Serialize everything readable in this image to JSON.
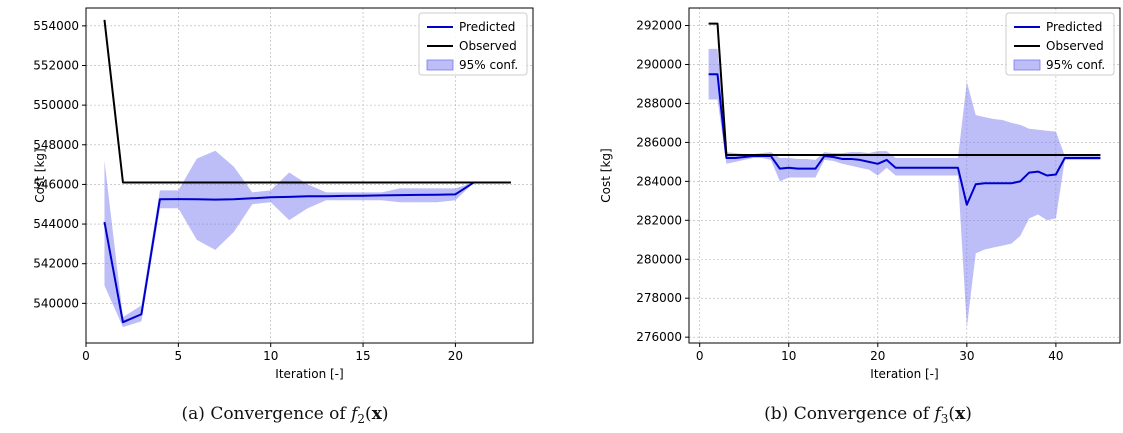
{
  "chart_data": [
    {
      "type": "line",
      "title": "",
      "xlabel": "Iteration [-]",
      "ylabel": "Cost [kg]",
      "xlim": [
        0,
        24.2
      ],
      "ylim": [
        538000,
        554900
      ],
      "xticks": [
        0,
        5,
        10,
        15,
        20
      ],
      "yticks": [
        540000,
        542000,
        544000,
        546000,
        548000,
        550000,
        552000,
        554000
      ],
      "grid": true,
      "legend_position": "top-right",
      "caption": "(a) Convergence of f2(x)",
      "caption_prefix": "(a) Convergence of ",
      "caption_fn": "f",
      "caption_sub": "2",
      "caption_arg": "x",
      "series": [
        {
          "name": "Predicted",
          "color": "#0000cc",
          "x": [
            1,
            2,
            3,
            4,
            5,
            6,
            7,
            8,
            9,
            10,
            11,
            12,
            13,
            14,
            15,
            16,
            17,
            18,
            19,
            20,
            21,
            22,
            23
          ],
          "values": [
            544100,
            539050,
            539450,
            545250,
            545260,
            545250,
            545230,
            545250,
            545300,
            545350,
            545370,
            545400,
            545400,
            545420,
            545430,
            545450,
            545460,
            545470,
            545480,
            545500,
            546100,
            546100,
            546100
          ]
        },
        {
          "name": "Observed",
          "color": "#000000",
          "x": [
            1,
            2,
            3,
            4,
            5,
            6,
            7,
            8,
            9,
            10,
            11,
            12,
            13,
            14,
            15,
            16,
            17,
            18,
            19,
            20,
            21,
            22,
            23
          ],
          "values": [
            554300,
            546100,
            546100,
            546100,
            546100,
            546100,
            546100,
            546100,
            546100,
            546100,
            546100,
            546100,
            546100,
            546100,
            546100,
            546100,
            546100,
            546100,
            546100,
            546100,
            546100,
            546100,
            546100
          ]
        },
        {
          "name": "95% conf.",
          "type": "band",
          "color": "#7b7bf0",
          "x": [
            1,
            2,
            3,
            4,
            5,
            6,
            7,
            8,
            9,
            10,
            11,
            12,
            13,
            14,
            15,
            16,
            17,
            18,
            19,
            20,
            21,
            22,
            23
          ],
          "upper": [
            547200,
            539300,
            539900,
            545700,
            545700,
            547300,
            547700,
            546900,
            545600,
            545700,
            546600,
            546000,
            545600,
            545600,
            545600,
            545600,
            545800,
            545800,
            545800,
            545800,
            546100,
            546100,
            546100
          ],
          "lower": [
            540900,
            538800,
            539100,
            544800,
            544800,
            543200,
            542700,
            543600,
            545000,
            545100,
            544200,
            544800,
            545200,
            545200,
            545200,
            545200,
            545100,
            545100,
            545100,
            545200,
            546100,
            546100,
            546100
          ]
        }
      ]
    },
    {
      "type": "line",
      "title": "",
      "xlabel": "Iteration [-]",
      "ylabel": "Cost [kg]",
      "xlim": [
        -1.2,
        47.2
      ],
      "ylim": [
        275700,
        292900
      ],
      "xticks": [
        0,
        10,
        20,
        30,
        40
      ],
      "yticks": [
        276000,
        278000,
        280000,
        282000,
        284000,
        286000,
        288000,
        290000,
        292000
      ],
      "grid": true,
      "legend_position": "top-right",
      "caption": "(b) Convergence of f3(x)",
      "caption_prefix": "(b) Convergence of ",
      "caption_fn": "f",
      "caption_sub": "3",
      "caption_arg": "x",
      "series": [
        {
          "name": "Predicted",
          "color": "#0000cc",
          "x": [
            1,
            2,
            3,
            4,
            5,
            6,
            7,
            8,
            9,
            10,
            11,
            12,
            13,
            14,
            15,
            16,
            17,
            18,
            19,
            20,
            21,
            22,
            23,
            24,
            25,
            26,
            27,
            28,
            29,
            30,
            31,
            32,
            33,
            34,
            35,
            36,
            37,
            38,
            39,
            40,
            41,
            42,
            43,
            44,
            45
          ],
          "values": [
            289500,
            289500,
            285200,
            285200,
            285250,
            285300,
            285300,
            285300,
            284650,
            284700,
            284650,
            284650,
            284650,
            285300,
            285250,
            285150,
            285150,
            285100,
            285000,
            284900,
            285100,
            284700,
            284700,
            284700,
            284700,
            284700,
            284700,
            284700,
            284700,
            282800,
            283850,
            283900,
            283900,
            283900,
            283900,
            284000,
            284450,
            284500,
            284300,
            284350,
            285200,
            285200,
            285200,
            285200,
            285200
          ]
        },
        {
          "name": "Observed",
          "color": "#000000",
          "x": [
            1,
            2,
            3,
            4,
            5,
            6,
            7,
            8,
            9,
            10,
            11,
            12,
            13,
            14,
            15,
            16,
            17,
            18,
            19,
            20,
            21,
            22,
            23,
            24,
            25,
            26,
            27,
            28,
            29,
            30,
            31,
            32,
            33,
            34,
            35,
            36,
            37,
            38,
            39,
            40,
            41,
            42,
            43,
            44,
            45
          ],
          "values": [
            292100,
            292100,
            285350,
            285350,
            285350,
            285350,
            285350,
            285350,
            285350,
            285350,
            285350,
            285350,
            285350,
            285350,
            285350,
            285350,
            285350,
            285350,
            285350,
            285350,
            285350,
            285350,
            285350,
            285350,
            285350,
            285350,
            285350,
            285350,
            285350,
            285350,
            285350,
            285350,
            285350,
            285350,
            285350,
            285350,
            285350,
            285350,
            285350,
            285350,
            285350,
            285350,
            285350,
            285350,
            285350
          ]
        },
        {
          "name": "95% conf.",
          "type": "band",
          "color": "#7b7bf0",
          "x": [
            1,
            2,
            3,
            4,
            5,
            6,
            7,
            8,
            9,
            10,
            11,
            12,
            13,
            14,
            15,
            16,
            17,
            18,
            19,
            20,
            21,
            22,
            23,
            24,
            25,
            26,
            27,
            28,
            29,
            30,
            31,
            32,
            33,
            34,
            35,
            36,
            37,
            38,
            39,
            40,
            41,
            42,
            43,
            44,
            45
          ],
          "upper": [
            290800,
            290800,
            285500,
            285450,
            285400,
            285400,
            285450,
            285500,
            285200,
            285200,
            285150,
            285150,
            285100,
            285500,
            285450,
            285450,
            285500,
            285500,
            285450,
            285550,
            285550,
            285200,
            285200,
            285200,
            285200,
            285200,
            285200,
            285200,
            285200,
            289100,
            287400,
            287300,
            287200,
            287150,
            287000,
            286900,
            286700,
            286650,
            286600,
            286550,
            285300,
            285300,
            285300,
            285300,
            285300
          ],
          "lower": [
            288200,
            288200,
            284900,
            285000,
            285100,
            285200,
            285200,
            285100,
            284000,
            284200,
            284200,
            284200,
            284200,
            285100,
            285050,
            284900,
            284800,
            284700,
            284600,
            284300,
            284700,
            284300,
            284300,
            284300,
            284300,
            284300,
            284300,
            284300,
            284300,
            276500,
            280300,
            280500,
            280600,
            280700,
            280800,
            281200,
            282100,
            282300,
            282000,
            282100,
            285100,
            285100,
            285100,
            285100,
            285100
          ]
        }
      ]
    }
  ]
}
